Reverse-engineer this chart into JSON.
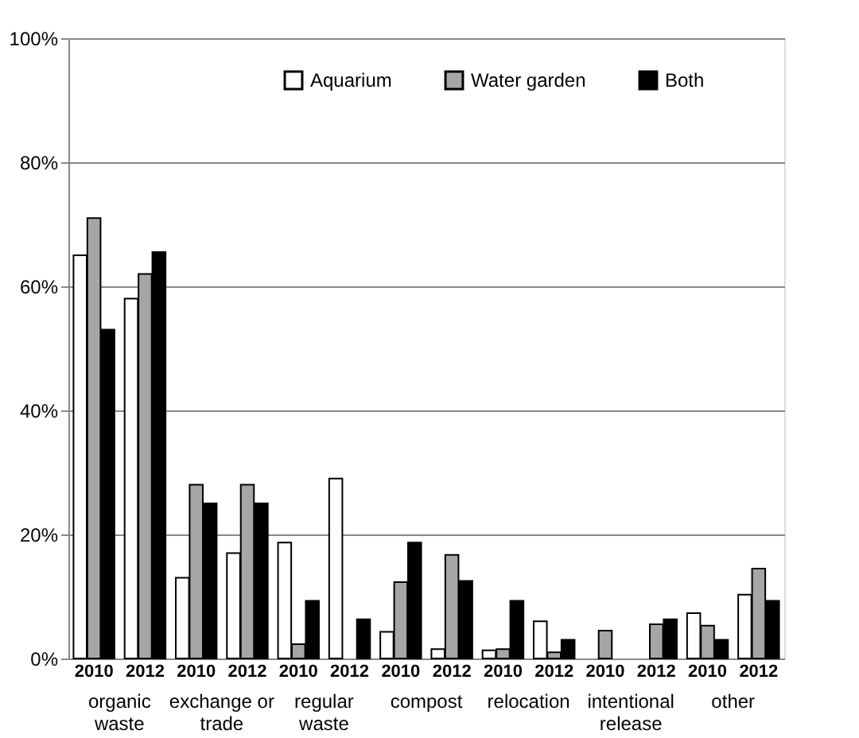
{
  "chart_data": {
    "type": "bar",
    "categories": [
      "2010",
      "2012",
      "2010",
      "2012",
      "2010",
      "2012",
      "2010",
      "2012",
      "2010",
      "2012",
      "2010",
      "2012",
      "2010",
      "2012"
    ],
    "annotations": [
      "organic\nwaste",
      "exchange or\ntrade",
      "regular\nwaste",
      "compost",
      "relocation",
      "intentional\nrelease",
      "other"
    ],
    "series": [
      {
        "name": "Aquarium",
        "color": "#ffffff",
        "values": [
          65,
          58,
          13,
          17,
          18.7,
          29,
          4.3,
          1.5,
          1.3,
          6,
          null,
          null,
          7.3,
          10.3
        ]
      },
      {
        "name": "Water garden",
        "color": "#a6a6a6",
        "values": [
          71,
          62,
          28,
          28,
          2.3,
          null,
          12.3,
          16.7,
          1.5,
          1,
          4.5,
          5.5,
          5.3,
          14.5
        ]
      },
      {
        "name": "Both",
        "color": "#000000",
        "values": [
          53,
          65.5,
          25,
          25,
          9.3,
          6.3,
          18.7,
          12.5,
          9.3,
          3,
          null,
          6.3,
          3,
          9.3
        ]
      }
    ],
    "ylim": [
      0,
      100
    ],
    "yticks": [
      {
        "value": 0,
        "label": "0%"
      },
      {
        "value": 20,
        "label": "20%"
      },
      {
        "value": 40,
        "label": "40%"
      },
      {
        "value": 60,
        "label": "60%"
      },
      {
        "value": 80,
        "label": "80%"
      },
      {
        "value": 100,
        "label": "100%"
      }
    ],
    "grid": "y",
    "legend": "top"
  }
}
